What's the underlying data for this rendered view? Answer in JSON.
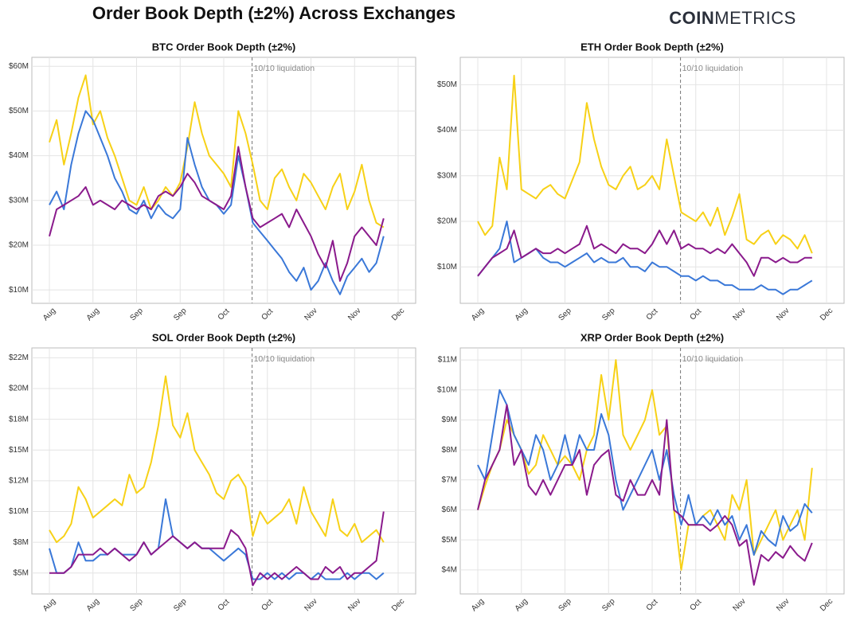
{
  "title": "Order Book Depth (±2%) Across Exchanges",
  "logo": [
    "COIN",
    "METRICS"
  ],
  "chart_data": [
    {
      "type": "line",
      "title": "BTC Order Book Depth (±2%)",
      "annotation": "10/10 liquidation",
      "grid": true,
      "categories": [
        "Aug",
        null,
        null,
        null,
        null,
        null,
        "Aug",
        null,
        null,
        null,
        null,
        null,
        "Sep",
        null,
        null,
        null,
        null,
        null,
        "Sep",
        null,
        null,
        null,
        null,
        null,
        "Oct",
        null,
        null,
        null,
        null,
        null,
        "Oct",
        null,
        null,
        null,
        null,
        null,
        "Nov",
        null,
        null,
        null,
        null,
        null,
        "Nov",
        null,
        null,
        null,
        null,
        null,
        "Dec"
      ],
      "ylim": [
        7,
        62
      ],
      "yticks": [
        {
          "value": 10,
          "label": "$10M"
        },
        {
          "value": 20,
          "label": "$20M"
        },
        {
          "value": 30,
          "label": "$30M"
        },
        {
          "value": 40,
          "label": "$40M"
        },
        {
          "value": 50,
          "label": "$50M"
        },
        {
          "value": 60,
          "label": "$60M"
        }
      ],
      "series": [
        {
          "color": "#f7d117",
          "values": [
            43,
            48,
            38,
            45,
            53,
            58,
            47,
            50,
            44,
            40,
            35,
            30,
            29,
            33,
            28,
            30,
            33,
            31,
            34,
            42,
            52,
            45,
            40,
            38,
            36,
            33,
            50,
            45,
            38,
            30,
            28,
            35,
            37,
            33,
            30,
            36,
            34,
            31,
            28,
            33,
            36,
            28,
            32,
            38,
            30,
            25,
            24,
            null,
            null
          ]
        },
        {
          "color": "#3a78d8",
          "values": [
            29,
            32,
            28,
            38,
            45,
            50,
            48,
            44,
            40,
            35,
            32,
            28,
            27,
            30,
            26,
            29,
            27,
            26,
            28,
            44,
            38,
            33,
            30,
            29,
            27,
            29,
            40,
            33,
            25,
            23,
            21,
            19,
            17,
            14,
            12,
            15,
            10,
            12,
            16,
            12,
            9,
            13,
            15,
            17,
            14,
            16,
            22,
            null,
            null
          ]
        },
        {
          "color": "#8a1a8c",
          "values": [
            22,
            28,
            29,
            30,
            31,
            33,
            29,
            30,
            29,
            28,
            30,
            29,
            28,
            29,
            28,
            31,
            32,
            31,
            33,
            36,
            34,
            31,
            30,
            29,
            28,
            31,
            42,
            33,
            26,
            24,
            25,
            26,
            27,
            24,
            28,
            25,
            22,
            18,
            15,
            21,
            12,
            16,
            22,
            24,
            22,
            20,
            26,
            null,
            null
          ]
        }
      ]
    },
    {
      "type": "line",
      "title": "ETH Order Book Depth (±2%)",
      "annotation": "10/10 liquidation",
      "grid": true,
      "categories": [
        "Aug",
        null,
        null,
        null,
        null,
        null,
        "Aug",
        null,
        null,
        null,
        null,
        null,
        "Sep",
        null,
        null,
        null,
        null,
        null,
        "Sep",
        null,
        null,
        null,
        null,
        null,
        "Oct",
        null,
        null,
        null,
        null,
        null,
        "Oct",
        null,
        null,
        null,
        null,
        null,
        "Nov",
        null,
        null,
        null,
        null,
        null,
        "Nov",
        null,
        null,
        null,
        null,
        null,
        "Dec"
      ],
      "ylim": [
        2,
        56
      ],
      "yticks": [
        {
          "value": 10,
          "label": "$10M"
        },
        {
          "value": 20,
          "label": "$20M"
        },
        {
          "value": 30,
          "label": "$30M"
        },
        {
          "value": 40,
          "label": "$40M"
        },
        {
          "value": 50,
          "label": "$50M"
        }
      ],
      "series": [
        {
          "color": "#f7d117",
          "values": [
            20,
            17,
            19,
            34,
            27,
            52,
            27,
            26,
            25,
            27,
            28,
            26,
            25,
            29,
            33,
            46,
            38,
            32,
            28,
            27,
            30,
            32,
            27,
            28,
            30,
            27,
            38,
            30,
            22,
            21,
            20,
            22,
            19,
            23,
            17,
            21,
            26,
            16,
            15,
            17,
            18,
            15,
            17,
            16,
            14,
            17,
            13,
            null,
            null
          ]
        },
        {
          "color": "#3a78d8",
          "values": [
            8,
            10,
            12,
            14,
            20,
            11,
            12,
            13,
            14,
            12,
            11,
            11,
            10,
            11,
            12,
            13,
            11,
            12,
            11,
            11,
            12,
            10,
            10,
            9,
            11,
            10,
            10,
            9,
            8,
            8,
            7,
            8,
            7,
            7,
            6,
            6,
            5,
            5,
            5,
            6,
            5,
            5,
            4,
            5,
            5,
            6,
            7,
            null,
            null
          ]
        },
        {
          "color": "#8a1a8c",
          "values": [
            8,
            10,
            12,
            13,
            14,
            18,
            12,
            13,
            14,
            13,
            13,
            14,
            13,
            14,
            15,
            19,
            14,
            15,
            14,
            13,
            15,
            14,
            14,
            13,
            15,
            18,
            15,
            18,
            14,
            15,
            14,
            14,
            13,
            14,
            13,
            15,
            13,
            11,
            8,
            12,
            12,
            11,
            12,
            11,
            11,
            12,
            12,
            null,
            null
          ]
        }
      ]
    },
    {
      "type": "line",
      "title": "SOL Order Book Depth (±2%)",
      "annotation": "10/10 liquidation",
      "grid": true,
      "categories": [
        "Aug",
        null,
        null,
        null,
        null,
        null,
        "Aug",
        null,
        null,
        null,
        null,
        null,
        "Sep",
        null,
        null,
        null,
        null,
        null,
        "Sep",
        null,
        null,
        null,
        null,
        null,
        "Oct",
        null,
        null,
        null,
        null,
        null,
        "Oct",
        null,
        null,
        null,
        null,
        null,
        "Nov",
        null,
        null,
        null,
        null,
        null,
        "Nov",
        null,
        null,
        null,
        null,
        null,
        "Dec"
      ],
      "ylim": [
        3.3,
        23.3
      ],
      "yticks": [
        {
          "value": 5,
          "label": "$5M"
        },
        {
          "value": 7.5,
          "label": "$8M"
        },
        {
          "value": 10,
          "label": "$10M"
        },
        {
          "value": 12.5,
          "label": "$12M"
        },
        {
          "value": 15,
          "label": "$15M"
        },
        {
          "value": 17.5,
          "label": "$18M"
        },
        {
          "value": 20,
          "label": "$20M"
        },
        {
          "value": 22.5,
          "label": "$22M"
        }
      ],
      "series": [
        {
          "color": "#f7d117",
          "values": [
            8.5,
            7.5,
            8,
            9,
            12,
            11,
            9.5,
            10,
            10.5,
            11,
            10.5,
            13,
            11.5,
            12,
            14,
            17,
            21,
            17,
            16,
            18,
            15,
            14,
            13,
            11.5,
            11,
            12.5,
            13,
            12,
            8,
            10,
            9,
            9.5,
            10,
            11,
            9,
            12,
            10,
            9,
            8,
            11,
            8.5,
            8,
            9,
            7.5,
            8,
            8.5,
            7.5,
            null,
            null
          ]
        },
        {
          "color": "#3a78d8",
          "values": [
            7,
            5,
            5,
            5.5,
            7.5,
            6,
            6,
            6.5,
            6.5,
            7,
            6.5,
            6.5,
            6.5,
            7.5,
            6.5,
            7,
            11,
            8,
            7.5,
            7,
            7.5,
            7,
            7,
            6.5,
            6,
            6.5,
            7,
            6.5,
            4.5,
            4.5,
            5,
            4.5,
            5,
            4.5,
            5,
            5,
            4.5,
            5,
            4.5,
            4.5,
            4.5,
            5,
            4.5,
            5,
            5,
            4.5,
            5,
            null,
            null
          ]
        },
        {
          "color": "#8a1a8c",
          "values": [
            5,
            5,
            5,
            5.5,
            6.5,
            6.5,
            6.5,
            7,
            6.5,
            7,
            6.5,
            6,
            6.5,
            7.5,
            6.5,
            7,
            7.5,
            8,
            7.5,
            7,
            7.5,
            7,
            7,
            7,
            7,
            8.5,
            8,
            7,
            4,
            5,
            4.5,
            5,
            4.5,
            5,
            5.5,
            5,
            4.5,
            4.5,
            5.5,
            5,
            5.5,
            4.5,
            5,
            5,
            5.5,
            6,
            10,
            null,
            null
          ]
        }
      ]
    },
    {
      "type": "line",
      "title": "XRP Order Book Depth (±2%)",
      "annotation": "10/10 liquidation",
      "grid": true,
      "categories": [
        "Aug",
        null,
        null,
        null,
        null,
        null,
        "Aug",
        null,
        null,
        null,
        null,
        null,
        "Sep",
        null,
        null,
        null,
        null,
        null,
        "Sep",
        null,
        null,
        null,
        null,
        null,
        "Oct",
        null,
        null,
        null,
        null,
        null,
        "Oct",
        null,
        null,
        null,
        null,
        null,
        "Nov",
        null,
        null,
        null,
        null,
        null,
        "Nov",
        null,
        null,
        null,
        null,
        null,
        "Dec"
      ],
      "ylim": [
        3.2,
        11.4
      ],
      "yticks": [
        {
          "value": 4,
          "label": "$4M"
        },
        {
          "value": 5,
          "label": "$5M"
        },
        {
          "value": 6,
          "label": "$6M"
        },
        {
          "value": 7,
          "label": "$7M"
        },
        {
          "value": 8,
          "label": "$8M"
        },
        {
          "value": 9,
          "label": "$9M"
        },
        {
          "value": 10,
          "label": "$10M"
        },
        {
          "value": 11,
          "label": "$11M"
        }
      ],
      "series": [
        {
          "color": "#f7d117",
          "values": [
            6,
            6.8,
            7.5,
            8,
            9,
            8.5,
            8,
            7.2,
            7.5,
            8.5,
            8,
            7.5,
            7.8,
            7.5,
            7,
            8,
            8.5,
            10.5,
            9,
            11,
            8.5,
            8,
            8.5,
            9,
            10,
            8.5,
            8.8,
            6,
            4,
            5.5,
            5.5,
            5.8,
            6,
            5.5,
            5,
            6.5,
            6,
            7,
            4.5,
            5,
            5.5,
            6,
            5,
            5.5,
            6,
            5,
            7.4,
            null,
            null
          ]
        },
        {
          "color": "#3a78d8",
          "values": [
            7.5,
            7,
            8.5,
            10,
            9.5,
            8.5,
            8,
            7.5,
            8.5,
            8,
            7,
            7.5,
            8.5,
            7.5,
            8.5,
            8,
            8,
            9.2,
            8.5,
            7,
            6,
            6.5,
            7,
            7.5,
            8,
            7,
            8,
            6.5,
            5.5,
            6.5,
            5.5,
            5.8,
            5.5,
            6,
            5.5,
            5.8,
            5,
            5.5,
            4.5,
            5.3,
            5,
            4.8,
            5.8,
            5.3,
            5.5,
            6.2,
            5.9,
            null,
            null
          ]
        },
        {
          "color": "#8a1a8c",
          "values": [
            6,
            7,
            7.5,
            8,
            9.5,
            7.5,
            8,
            6.8,
            6.5,
            7,
            6.5,
            7,
            7.5,
            7.5,
            8,
            6.5,
            7.5,
            7.8,
            8,
            6.5,
            6.3,
            7,
            6.5,
            6.5,
            7,
            6.5,
            9,
            6,
            5.8,
            5.5,
            5.5,
            5.5,
            5.3,
            5.5,
            5.8,
            5.5,
            4.8,
            5,
            3.5,
            4.5,
            4.3,
            4.6,
            4.4,
            4.8,
            4.5,
            4.3,
            4.9,
            null,
            null
          ]
        }
      ]
    }
  ]
}
